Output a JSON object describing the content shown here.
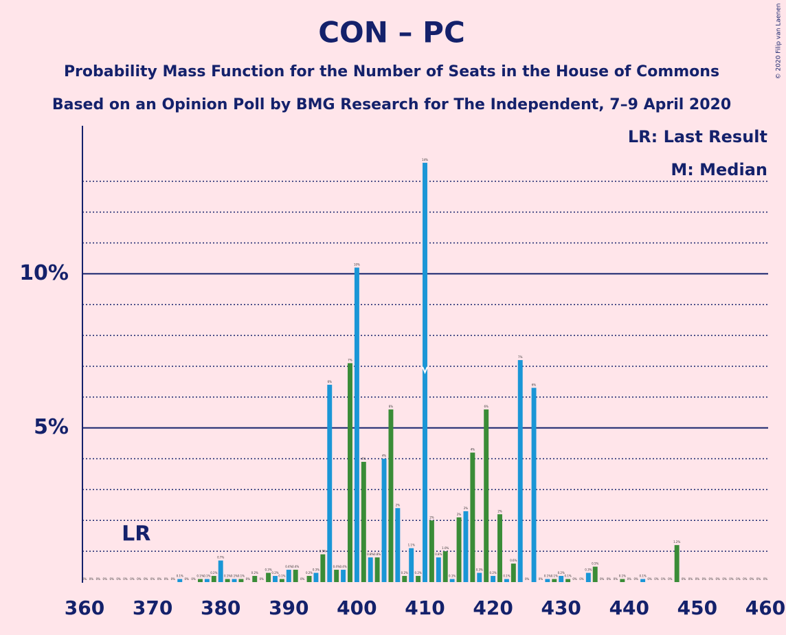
{
  "chart_data": {
    "type": "bar",
    "title": "CON – PC",
    "subtitle": "Probability Mass Function for the Number of Seats in the House of Commons",
    "subtitle2": "Based on an Opinion Poll by BMG Research for The Independent, 7–9 April 2020",
    "credit": "© 2020 Filip van Laenen",
    "legend": [
      "LR: Last Result",
      "M: Median"
    ],
    "last_result": {
      "value": 369,
      "label": "LR"
    },
    "median": 410,
    "colors": [
      "#1a96d6",
      "#3a8c37"
    ],
    "x": [
      360,
      361,
      362,
      363,
      364,
      365,
      366,
      367,
      368,
      369,
      370,
      371,
      372,
      373,
      374,
      375,
      376,
      377,
      378,
      379,
      380,
      381,
      382,
      383,
      384,
      385,
      386,
      387,
      388,
      389,
      390,
      391,
      392,
      393,
      394,
      395,
      396,
      397,
      398,
      399,
      400,
      401,
      402,
      403,
      404,
      405,
      406,
      407,
      408,
      409,
      410,
      411,
      412,
      413,
      414,
      415,
      416,
      417,
      418,
      419,
      420,
      421,
      422,
      423,
      424,
      425,
      426,
      427,
      428,
      429,
      430,
      431,
      432,
      433,
      434,
      435,
      436,
      437,
      438,
      439,
      440,
      441,
      442,
      443,
      444,
      445,
      446,
      447,
      448,
      449,
      450,
      451,
      452,
      453,
      454,
      455,
      456,
      457,
      458,
      459,
      460
    ],
    "values": [
      0,
      0,
      0,
      0,
      0,
      0,
      0,
      0,
      0,
      0,
      0,
      0,
      0,
      0,
      0.1,
      0,
      0,
      0.1,
      0.1,
      0.2,
      0.7,
      0.1,
      0.1,
      0.1,
      0,
      0.2,
      0,
      0.3,
      0.2,
      0.1,
      0.4,
      0.4,
      0,
      0.2,
      0.3,
      0.9,
      6.4,
      0.4,
      0.4,
      7.1,
      10.2,
      3.9,
      0.8,
      0.8,
      4.0,
      5.6,
      2.4,
      0.2,
      1.1,
      0.2,
      13.6,
      2.0,
      0.8,
      1.0,
      0.1,
      2.1,
      2.3,
      4.2,
      0.3,
      5.6,
      0.2,
      2.2,
      0.1,
      0.6,
      7.2,
      0,
      6.3,
      0,
      0.1,
      0.1,
      0.2,
      0.1,
      0,
      0,
      0.3,
      0.5,
      0,
      0,
      0,
      0.1,
      0,
      0,
      0.1,
      0,
      0,
      0,
      0,
      1.2,
      0,
      0,
      0,
      0,
      0,
      0,
      0,
      0,
      0,
      0,
      0,
      0,
      0
    ],
    "value_labels": [
      "0%",
      "0%",
      "0%",
      "0%",
      "0%",
      "0%",
      "0%",
      "0%",
      "0%",
      "0%",
      "0%",
      "0%",
      "0%",
      "0%",
      "0.1%",
      "0%",
      "0%",
      "0.1%",
      "0.1%",
      "0.2%",
      "0.7%",
      "0.1%",
      "0.1%",
      "0.1%",
      "0%",
      "0.2%",
      "0%",
      "0.3%",
      "0.2%",
      "0.1%",
      "0.4%",
      "0.4%",
      "0%",
      "0.2%",
      "0.3%",
      "0.9%",
      "6%",
      "0.4%",
      "0.4%",
      "7%",
      "10%",
      "4%",
      "0.8%",
      "0.8%",
      "4%",
      "6%",
      "2%",
      "0.2%",
      "1.1%",
      "0.2%",
      "14%",
      "2%",
      "0.8%",
      "1.0%",
      "0.1%",
      "2%",
      "2%",
      "4%",
      "0.3%",
      "6%",
      "0.2%",
      "2%",
      "0.1%",
      "0.6%",
      "7%",
      "0%",
      "6%",
      "0%",
      "0.1%",
      "0.1%",
      "0.2%",
      "0.1%",
      "0%",
      "0%",
      "0.3%",
      "0.5%",
      "0%",
      "0%",
      "0%",
      "0.1%",
      "0%",
      "0%",
      "0.1%",
      "0%",
      "0%",
      "0%",
      "0%",
      "1.2%",
      "0%",
      "0%",
      "0%",
      "0%",
      "0%",
      "0%",
      "0%",
      "0%",
      "0%",
      "0%",
      "0%",
      "0%",
      "0%"
    ],
    "xlim": [
      360,
      460
    ],
    "xticks": [
      360,
      370,
      380,
      390,
      400,
      410,
      420,
      430,
      440,
      450,
      460
    ],
    "ylim": [
      0,
      14.8
    ],
    "yticks": [
      {
        "value": 5,
        "label": "5%"
      },
      {
        "value": 10,
        "label": "10%"
      }
    ],
    "minor_yticks": [
      1,
      2,
      3,
      4,
      6,
      7,
      8,
      9,
      11,
      12,
      13
    ]
  }
}
